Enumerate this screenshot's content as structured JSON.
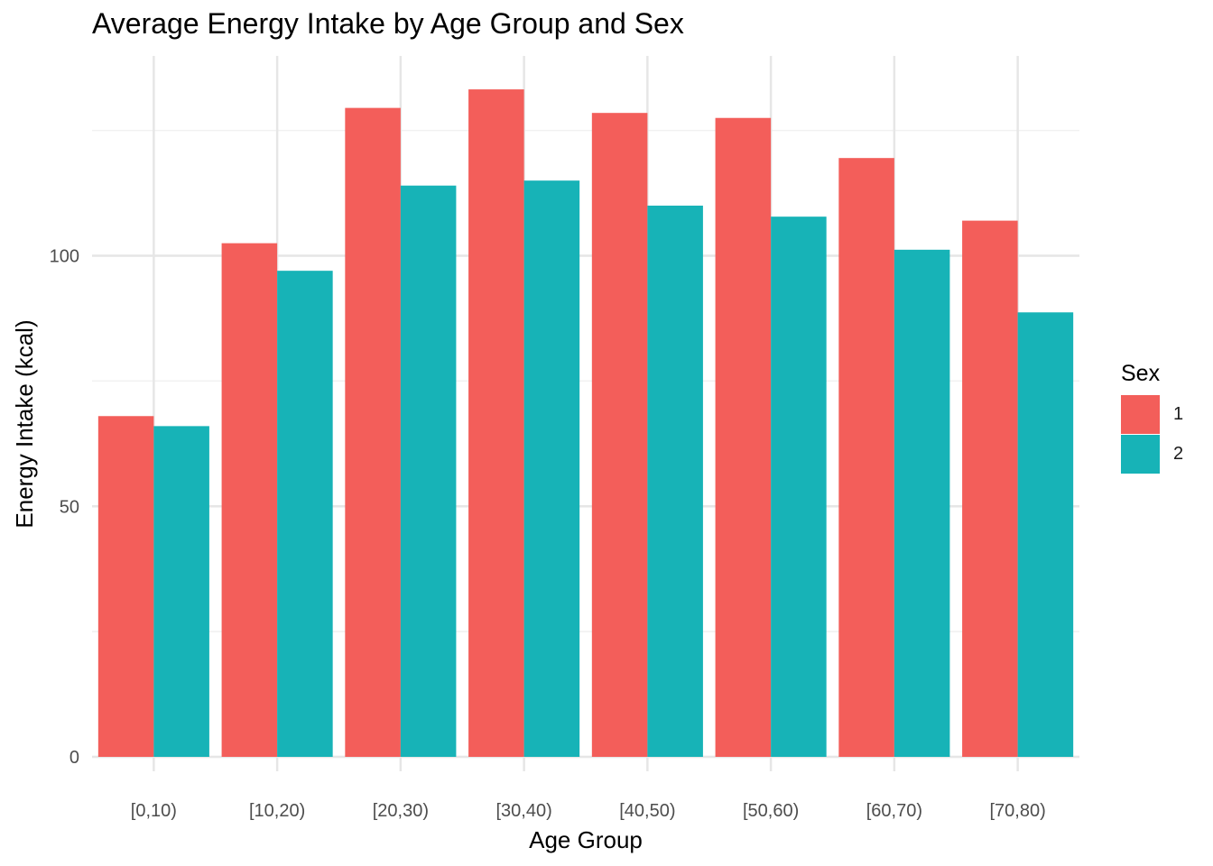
{
  "chart_data": {
    "type": "bar",
    "title": "Average Energy Intake by Age Group and Sex",
    "xlabel": "Age Group",
    "ylabel": "Energy Intake (kcal)",
    "categories": [
      "[0,10)",
      "[10,20)",
      "[20,30)",
      "[30,40)",
      "[40,50)",
      "[50,60)",
      "[60,70)",
      "[70,80)"
    ],
    "series": [
      {
        "name": "1",
        "color": "#F35E5A",
        "values": [
          68,
          102.5,
          129.5,
          133.2,
          128.5,
          127.5,
          119.5,
          107
        ]
      },
      {
        "name": "2",
        "color": "#17B3B7",
        "values": [
          66,
          97,
          114,
          115,
          110,
          107.8,
          101.2,
          88.7
        ]
      }
    ],
    "yticks": [
      0,
      50,
      100
    ],
    "ylim": [
      0,
      140
    ],
    "grid": true,
    "legend": {
      "title": "Sex",
      "position": "right"
    }
  }
}
